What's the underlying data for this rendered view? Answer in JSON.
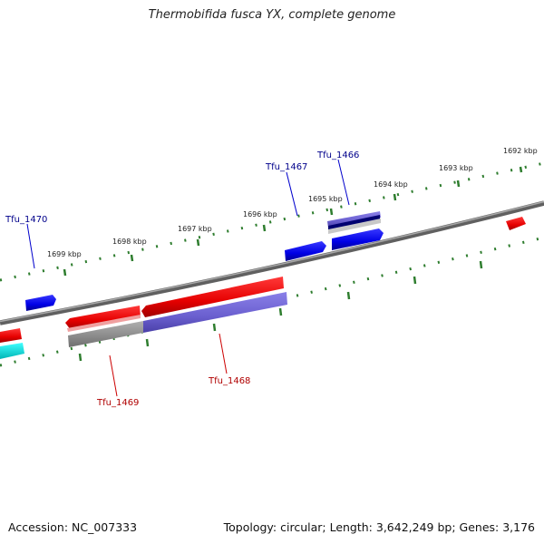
{
  "title": "Thermobifida fusca YX, complete genome",
  "footer": {
    "accession": "Accession: NC_007333",
    "summary": "Topology: circular; Length: 3,642,249 bp; Genes: 3,176"
  },
  "colors": {
    "backbone": "#808080",
    "forward_gene": "#0000ff",
    "reverse_gene": "#ff0000",
    "cds_feature": "#6a5fcf",
    "rna_feature": "#00e5e5",
    "tick": "#2e7d2e",
    "label_forward": "#00008b",
    "label_reverse": "#b00000"
  },
  "scale": {
    "ticks_kbp": [
      "1692 kbp",
      "1693 kbp",
      "1694 kbp",
      "1695 kbp",
      "1696 kbp",
      "1697 kbp",
      "1698 kbp",
      "1699 kbp"
    ]
  },
  "genes": [
    {
      "name": "Tfu_1466",
      "strand": "forward"
    },
    {
      "name": "Tfu_1467",
      "strand": "forward"
    },
    {
      "name": "Tfu_1468",
      "strand": "reverse"
    },
    {
      "name": "Tfu_1469",
      "strand": "reverse"
    },
    {
      "name": "Tfu_1470",
      "strand": "forward"
    }
  ]
}
